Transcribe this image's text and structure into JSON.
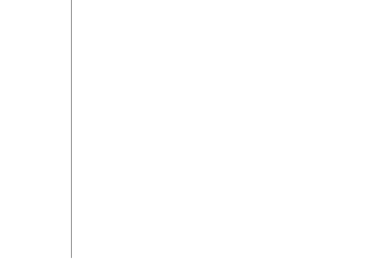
{
  "colors": {
    "background": "#ffffff",
    "divider": "#5a5a5a"
  }
}
